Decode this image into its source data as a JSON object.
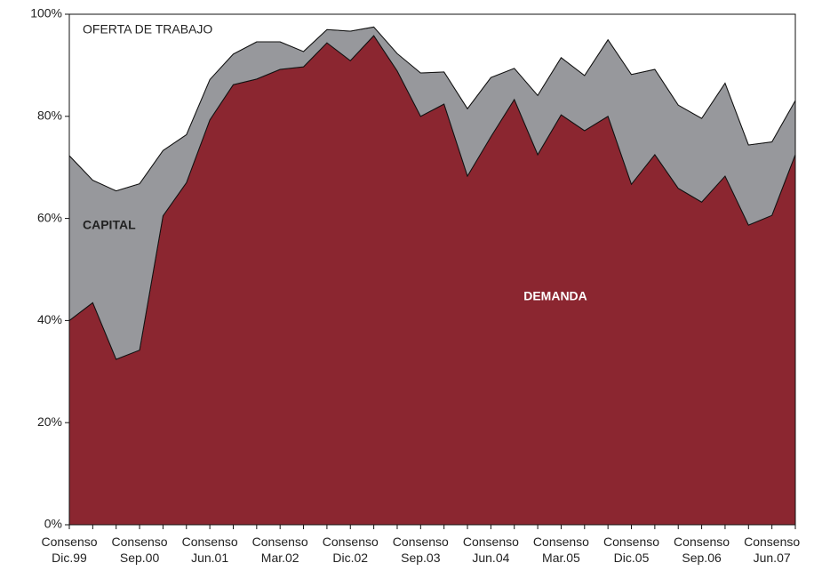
{
  "chart_data": {
    "type": "stacked_area",
    "categories": [
      "Consenso Dic.99",
      null,
      null,
      "Consenso Sep.00",
      null,
      null,
      "Consenso Jun.01",
      null,
      null,
      "Consenso Mar.02",
      null,
      null,
      "Consenso Dic.02",
      null,
      null,
      "Consenso Sep.03",
      null,
      null,
      "Consenso Jun.04",
      null,
      null,
      "Consenso Mar.05",
      null,
      null,
      "Consenso Dic.05",
      null,
      null,
      "Consenso Sep.06",
      null,
      null,
      "Consenso Jun.07",
      null
    ],
    "series": [
      {
        "name": "DEMANDA",
        "color": "#8b2630",
        "values": [
          40,
          43.5,
          32.4,
          34.2,
          60.5,
          67,
          79.3,
          86.2,
          87.3,
          89.2,
          89.7,
          94.4,
          90.9,
          95.8,
          88.9,
          80,
          82.4,
          68.3,
          76,
          83.3,
          72.5,
          80.3,
          77.2,
          80,
          66.7,
          72.5,
          65.9,
          63.2,
          68.3,
          58.7,
          60.6,
          72.5
        ]
      },
      {
        "name": "CAPITAL",
        "color": "#97989c",
        "values": [
          32.3,
          24,
          33,
          32.6,
          12.8,
          9.4,
          7.9,
          6,
          7.3,
          5.4,
          3,
          2.6,
          5.8,
          1.7,
          3.4,
          8.5,
          6.3,
          13.2,
          11.6,
          6.1,
          11.6,
          11.2,
          10.8,
          15,
          21.5,
          16.7,
          16.3,
          16.4,
          18.2,
          15.7,
          14.4,
          10.6
        ]
      },
      {
        "name": "OFERTA DE TRABAJO",
        "color": "#ffffff",
        "values": [
          27.7,
          32.5,
          34.6,
          33.2,
          26.7,
          23.6,
          12.8,
          7.8,
          5.4,
          5.4,
          7.3,
          3,
          3.3,
          2.5,
          7.7,
          11.5,
          11.3,
          18.5,
          12.4,
          10.6,
          15.9,
          8.5,
          12,
          5,
          11.8,
          10.8,
          17.8,
          20.4,
          13.5,
          25.6,
          25,
          16.9
        ]
      }
    ],
    "ylim": [
      0,
      100
    ],
    "yticks": [
      {
        "value": 0,
        "label": "0%"
      },
      {
        "value": 20,
        "label": "20%"
      },
      {
        "value": 40,
        "label": "40%"
      },
      {
        "value": 60,
        "label": "60%"
      },
      {
        "value": 80,
        "label": "80%"
      },
      {
        "value": 100,
        "label": "100%"
      }
    ]
  }
}
